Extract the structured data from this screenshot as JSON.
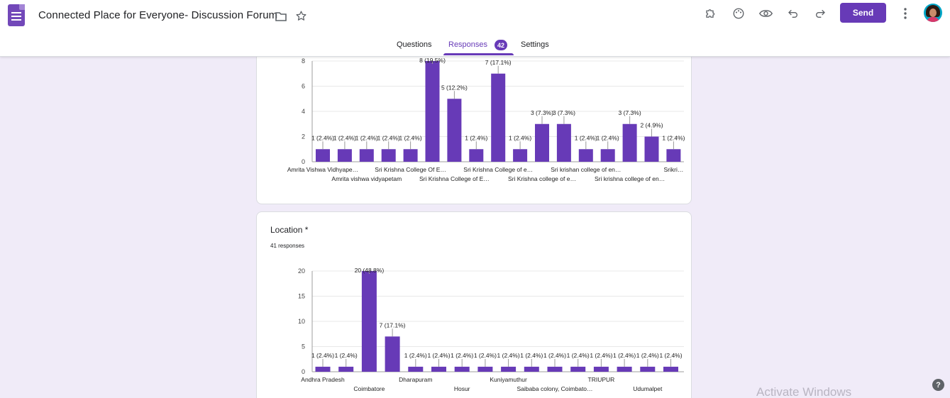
{
  "header": {
    "title": "Connected Place for Everyone- Discussion Forum",
    "send_label": "Send",
    "icons": [
      "folder-icon",
      "star-icon",
      "addons-icon",
      "palette-icon",
      "preview-icon",
      "undo-icon",
      "redo-icon",
      "more-icon"
    ]
  },
  "tabs": {
    "questions": "Questions",
    "responses": "Responses",
    "responses_count": "42",
    "settings": "Settings"
  },
  "colors": {
    "accent": "#673ab7",
    "bar": "#673ab7",
    "background": "#f0ebf8"
  },
  "questions": [
    {
      "title": "",
      "responses": "",
      "chart_data": {
        "type": "bar",
        "title": "",
        "categories": [
          "Amrita Vishwa Vidhyape…",
          "",
          "Amrita vishwa vidyapetam",
          "",
          "Sri Krishna College Of E…",
          "",
          "Sri Krishna College of E…",
          "",
          "Sri Krishna College of e…",
          "",
          "Sri Krishna college of e…",
          "",
          "Sri krishan college of en…",
          "",
          "Sri krishna college of en…",
          "",
          "Srikri…"
        ],
        "values": [
          1,
          1,
          1,
          1,
          1,
          8,
          5,
          1,
          7,
          1,
          3,
          3,
          1,
          1,
          3,
          2,
          1
        ],
        "labels": [
          "1 (2.4%)",
          "1 (2.4%)",
          "1 (2.4%)",
          "1 (2.4%)",
          "1 (2.4%)",
          "8 (19.5%)",
          "5 (12.2%)",
          "1 (2.4%)",
          "7 (17.1%)",
          "1 (2.4%)",
          "3 (7.3%)",
          "3 (7.3%)",
          "1 (2.4%)",
          "1 (2.4%)",
          "3 (7.3%)",
          "2 (4.9%)",
          "1 (2.4%)"
        ],
        "yticks": [
          "0",
          "2",
          "4",
          "6",
          "8"
        ],
        "ylim": [
          0,
          8
        ],
        "grid": true
      }
    },
    {
      "title": "Location *",
      "responses": "41 responses",
      "chart_data": {
        "type": "bar",
        "title": "",
        "categories": [
          "Andhra Pradesh",
          "",
          "Coimbatore",
          "",
          "Dharapuram",
          "",
          "Hosur",
          "",
          "Kuniyamuthur",
          "",
          "Saibaba colony, Coimbato…",
          "",
          "TRIUPUR",
          "",
          "Udumalpet",
          ""
        ],
        "values": [
          1,
          1,
          20,
          7,
          1,
          1,
          1,
          1,
          1,
          1,
          1,
          1,
          1,
          1,
          1,
          1
        ],
        "labels": [
          "1 (2.4%)",
          "1 (2.4%)",
          "20 (48.8%)",
          "7 (17.1%)",
          "1 (2.4%)",
          "1 (2.4%)",
          "1 (2.4%)",
          "1 (2.4%)",
          "1 (2.4%)",
          "1 (2.4%)",
          "1 (2.4%)",
          "1 (2.4%)",
          "1 (2.4%)",
          "1 (2.4%)",
          "1 (2.4%)",
          "1 (2.4%)"
        ],
        "yticks": [
          "0",
          "5",
          "10",
          "15",
          "20"
        ],
        "ylim": [
          0,
          20
        ],
        "grid": true
      }
    }
  ],
  "watermark": "Activate Windows",
  "help_label": "?"
}
